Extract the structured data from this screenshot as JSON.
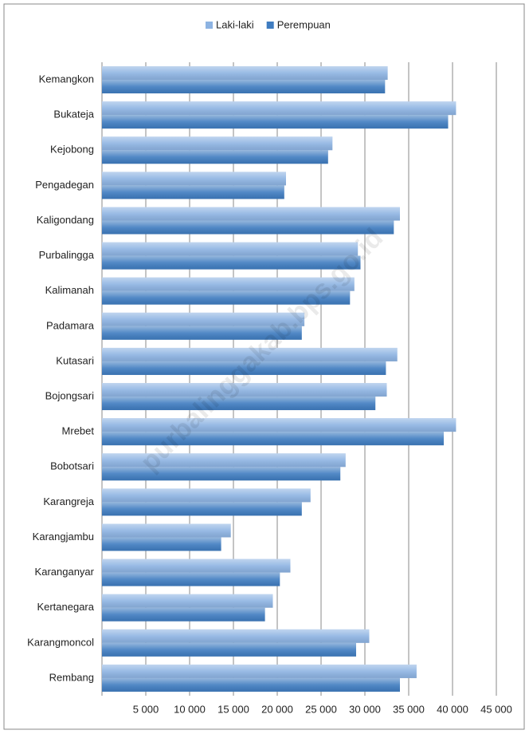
{
  "chart_data": {
    "type": "hbar",
    "watermark": "purbalinggakab.bps.go.id",
    "categories": [
      "Kemangkon",
      "Bukateja",
      "Kejobong",
      "Pengadegan",
      "Kaligondang",
      "Purbalingga",
      "Kalimanah",
      "Padamara",
      "Kutasari",
      "Bojongsari",
      "Mrebet",
      "Bobotsari",
      "Karangreja",
      "Karangjambu",
      "Karanganyar",
      "Kertanegara",
      "Karangmoncol",
      "Rembang"
    ],
    "series": [
      {
        "name": "Laki-laki",
        "color": "#8db3e2",
        "values": [
          32600,
          40400,
          26300,
          21000,
          34000,
          29200,
          28800,
          23100,
          33700,
          32500,
          40400,
          27800,
          23800,
          14700,
          21500,
          19500,
          30500,
          35900
        ]
      },
      {
        "name": "Perempuan",
        "color": "#3f7cc0",
        "values": [
          32300,
          39500,
          25800,
          20800,
          33300,
          29500,
          28300,
          22800,
          32400,
          31200,
          39000,
          27200,
          22800,
          13600,
          20300,
          18600,
          29000,
          34000
        ]
      }
    ],
    "xlim": [
      0,
      45000
    ],
    "xticks": [
      {
        "value": 5000,
        "label": "5 000"
      },
      {
        "value": 10000,
        "label": "10 000"
      },
      {
        "value": 15000,
        "label": "15 000"
      },
      {
        "value": 20000,
        "label": "20 000"
      },
      {
        "value": 25000,
        "label": "25 000"
      },
      {
        "value": 30000,
        "label": "30 000"
      },
      {
        "value": 35000,
        "label": "35 000"
      },
      {
        "value": 40000,
        "label": "40 000"
      },
      {
        "value": 45000,
        "label": "45 000"
      }
    ],
    "grid": true,
    "legend": "top"
  }
}
